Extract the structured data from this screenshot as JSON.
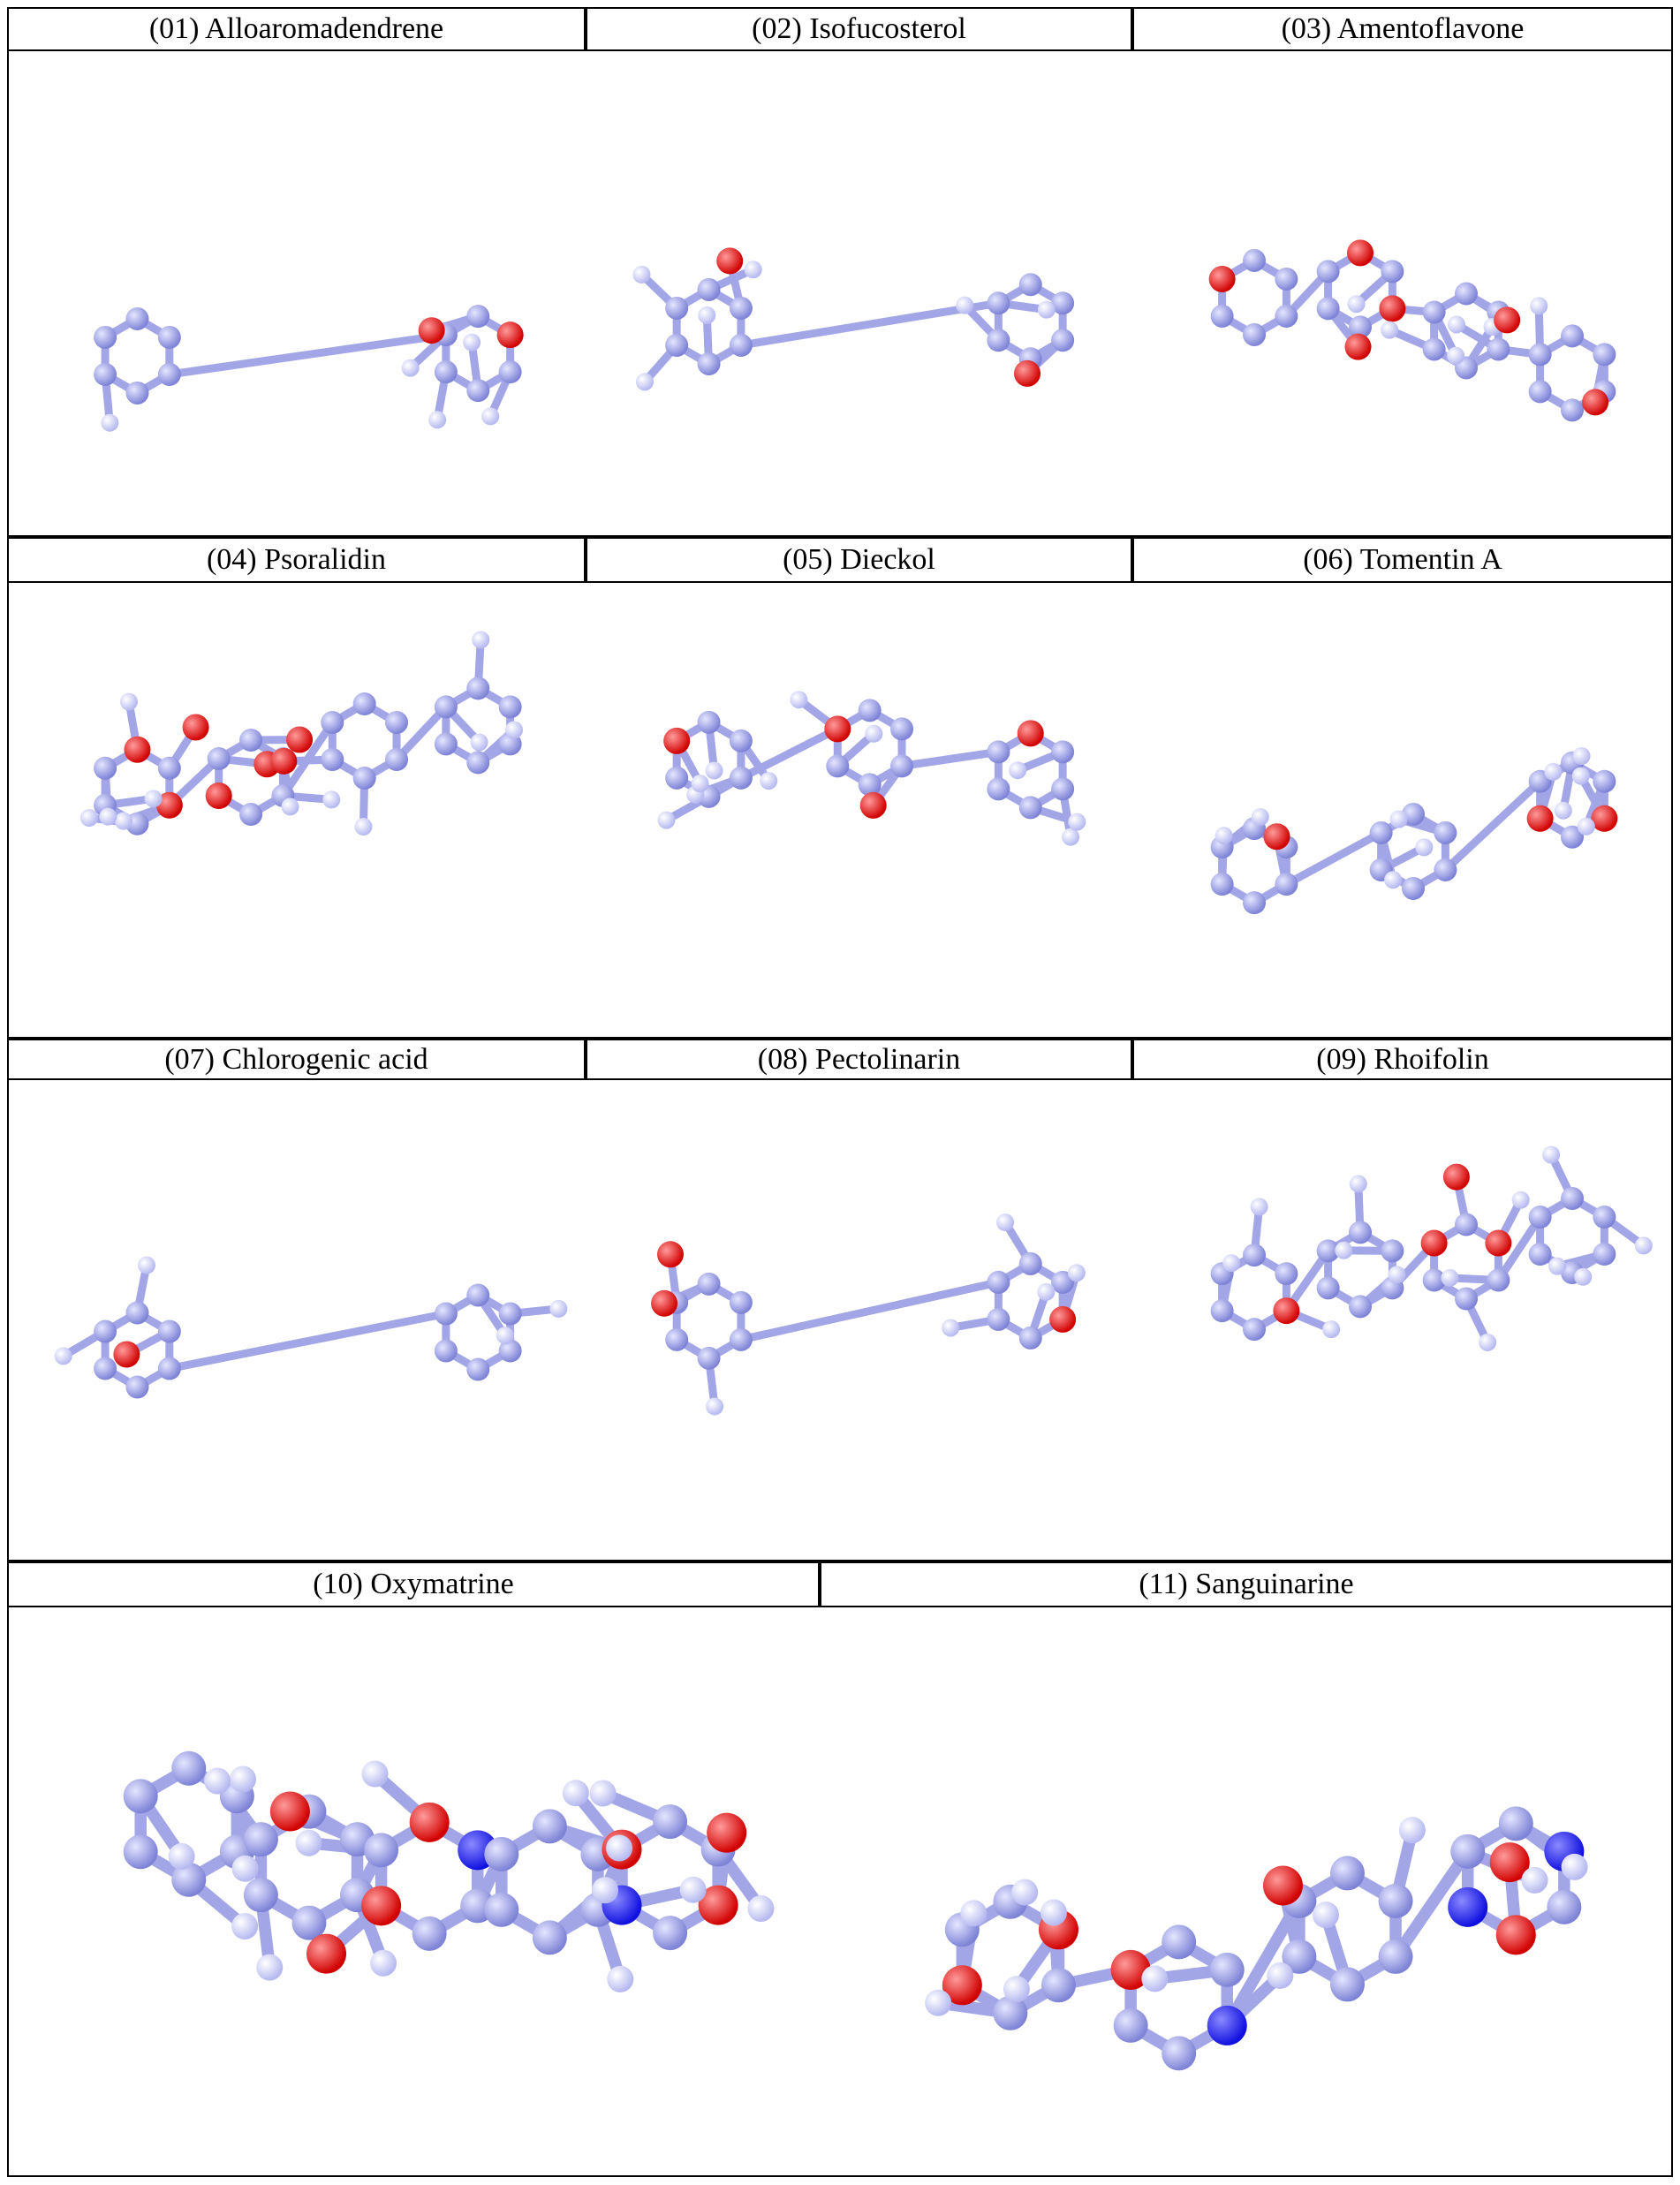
{
  "rows": [
    {
      "labels": [
        "(01) Alloaromadendrene",
        "(02) Isofucosterol",
        "(03) Amentoflavone"
      ]
    },
    {
      "labels": [
        "(04) Psoralidin",
        "(05) Dieckol",
        "(06) Tomentin A"
      ]
    },
    {
      "labels": [
        "(07) Chlorogenic acid",
        "(08) Pectolinarin",
        "(09) Rhoifolin"
      ]
    },
    {
      "labels": [
        "(10) Oxymatrine",
        "(11) Sanguinarine"
      ]
    }
  ]
}
